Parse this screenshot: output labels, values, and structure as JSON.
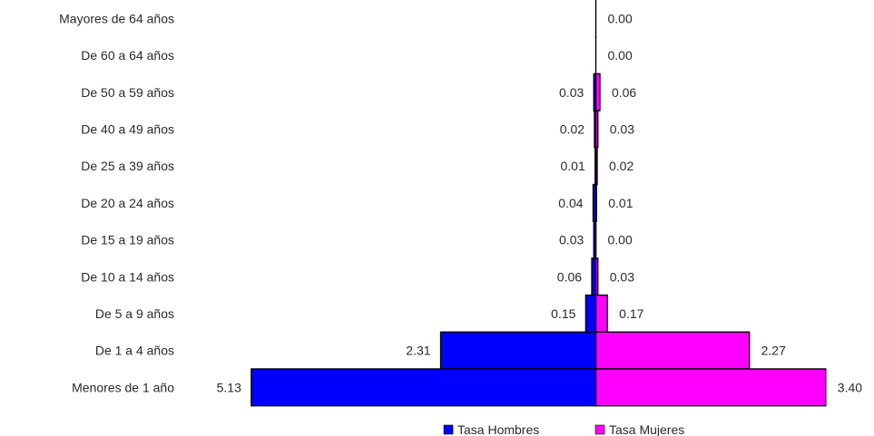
{
  "chart_data": {
    "type": "bar",
    "orientation": "horizontal",
    "layout": "population-pyramid",
    "categories": [
      "Mayores de 64 años",
      "De 60 a 64 años",
      "De 50 a 59 años",
      "De 40 a 49 años",
      "De 25 a 39 años",
      "De 20 a 24 años",
      "De 15 a 19 años",
      "De 10 a 14 años",
      "De 5 a 9 años",
      "De 1 a 4 años",
      "Menores de 1 año"
    ],
    "series": [
      {
        "name": "Tasa Hombres",
        "side": "left",
        "color": "#0000ff",
        "values": [
          null,
          null,
          0.03,
          0.02,
          0.01,
          0.04,
          0.03,
          0.06,
          0.15,
          2.31,
          5.13
        ],
        "labels": [
          "",
          "",
          "0.03",
          "0.02",
          "0.01",
          "0.04",
          "0.03",
          "0.06",
          "0.15",
          "2.31",
          "5.13"
        ]
      },
      {
        "name": "Tasa Mujeres",
        "side": "right",
        "color": "#ff00ff",
        "values": [
          0.0,
          0.0,
          0.06,
          0.03,
          0.02,
          0.01,
          0.0,
          0.03,
          0.17,
          2.27,
          3.4
        ],
        "labels": [
          "0.00",
          "0.00",
          "0.06",
          "0.03",
          "0.02",
          "0.01",
          "0.00",
          "0.03",
          "0.17",
          "2.27",
          "3.40"
        ]
      }
    ],
    "title": "",
    "xlabel": "",
    "ylabel": "",
    "grid": false,
    "legend_position": "bottom"
  }
}
